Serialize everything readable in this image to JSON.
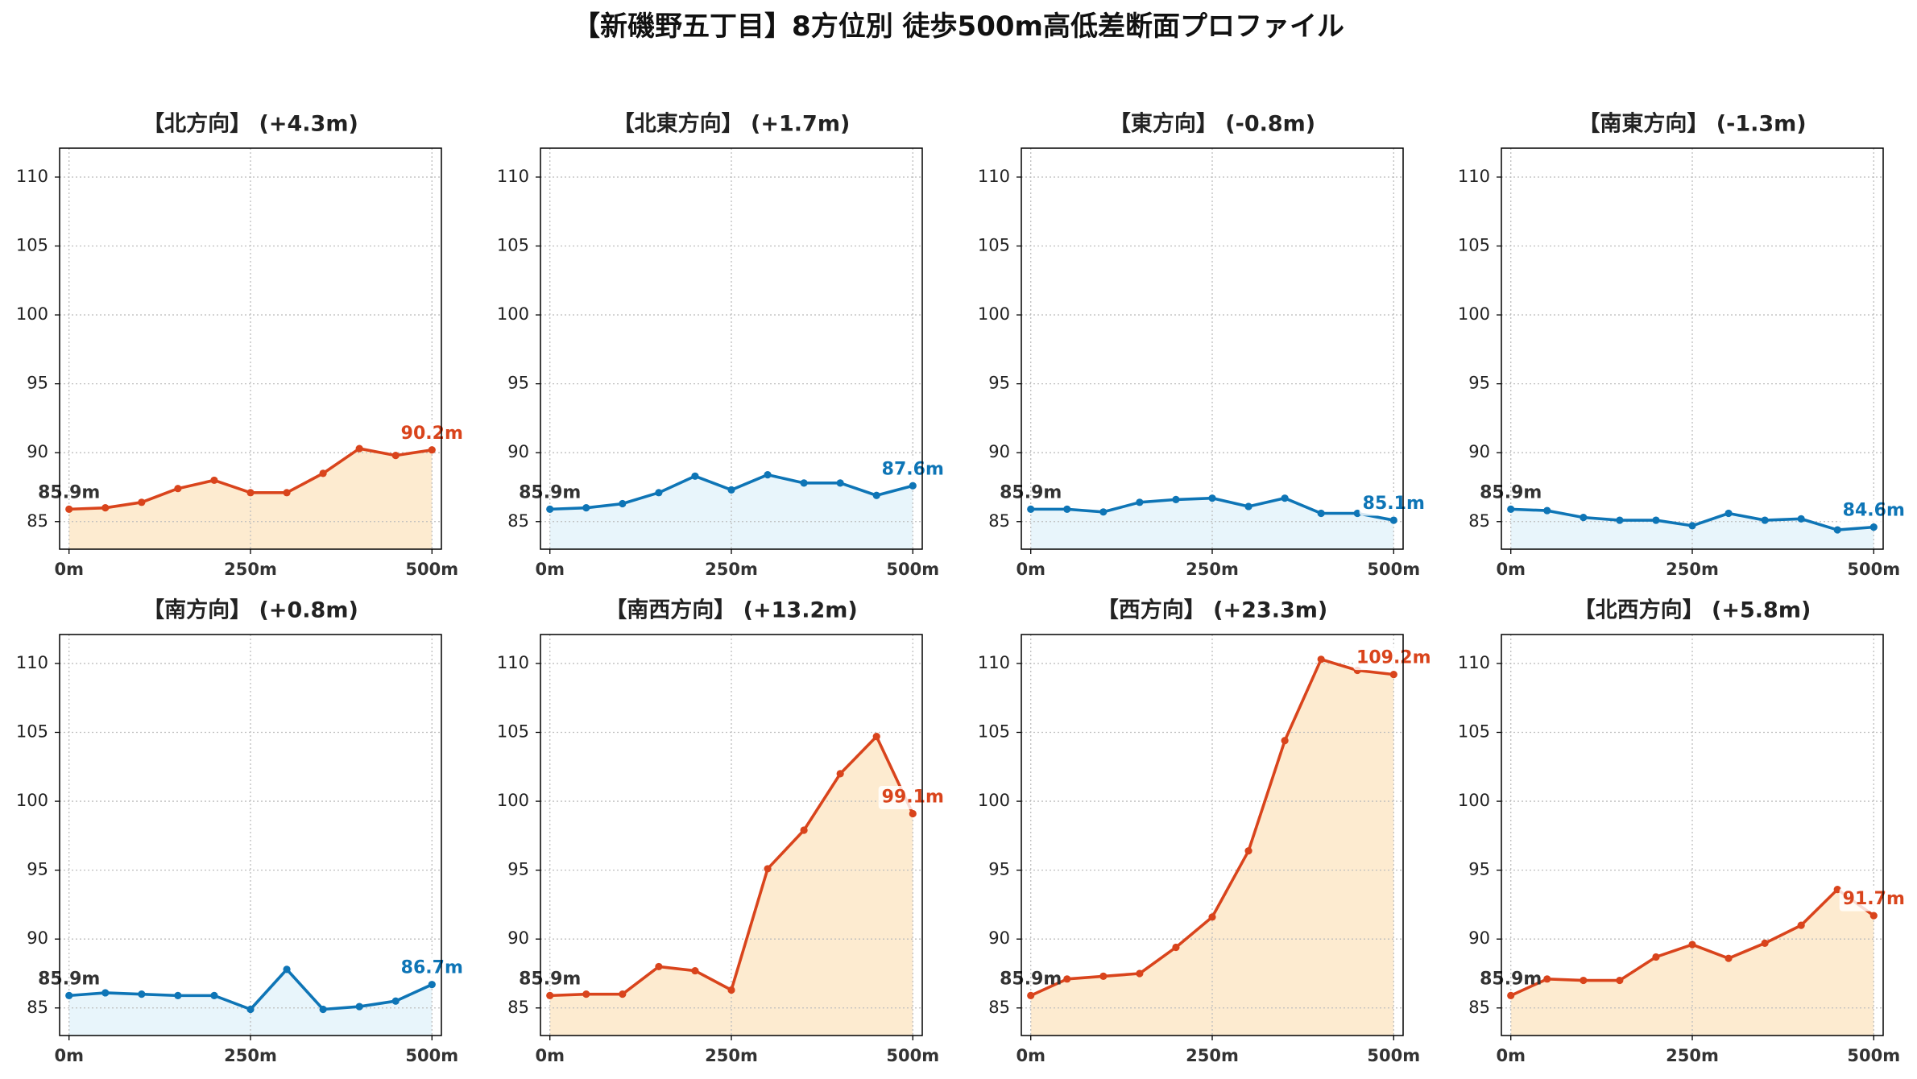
{
  "title": "【新磯野五丁目】8方位別 徒歩500m高低差断面プロファイル",
  "colors": {
    "rise_line": "#d9441c",
    "rise_fill": "#fdebd0",
    "flat_line": "#0e75b6",
    "flat_fill": "#e8f5fb",
    "start_label": "#333333"
  },
  "chart_data": [
    {
      "type": "line",
      "title": "【北方向】 (+4.3m)",
      "x": [
        0,
        50,
        100,
        150,
        200,
        250,
        300,
        350,
        400,
        450,
        500
      ],
      "y": [
        85.9,
        86.0,
        86.4,
        87.4,
        88.0,
        87.1,
        87.1,
        88.5,
        90.3,
        89.8,
        90.2
      ],
      "xticks": [
        0,
        250,
        500
      ],
      "xtick_labels": [
        "0m",
        "250m",
        "500m"
      ],
      "yticks": [
        85,
        90,
        95,
        100,
        105,
        110
      ],
      "ytick_labels": [
        "85",
        "90",
        "95",
        "100",
        "105",
        "110"
      ],
      "xlim": [
        -13,
        513
      ],
      "ylim": [
        83.0,
        112.1
      ],
      "grid": true,
      "start_label": "85.9m",
      "end_label": "90.2m",
      "color": "#d9441c",
      "fill": "#fdebd0"
    },
    {
      "type": "line",
      "title": "【北東方向】 (+1.7m)",
      "x": [
        0,
        50,
        100,
        150,
        200,
        250,
        300,
        350,
        400,
        450,
        500
      ],
      "y": [
        85.9,
        86.0,
        86.3,
        87.1,
        88.3,
        87.3,
        88.4,
        87.8,
        87.8,
        86.9,
        87.6
      ],
      "xticks": [
        0,
        250,
        500
      ],
      "xtick_labels": [
        "0m",
        "250m",
        "500m"
      ],
      "yticks": [
        85,
        90,
        95,
        100,
        105,
        110
      ],
      "ytick_labels": [
        "85",
        "90",
        "95",
        "100",
        "105",
        "110"
      ],
      "xlim": [
        -13,
        513
      ],
      "ylim": [
        83.0,
        112.1
      ],
      "grid": true,
      "start_label": "85.9m",
      "end_label": "87.6m",
      "color": "#0e75b6",
      "fill": "#e8f5fb"
    },
    {
      "type": "line",
      "title": "【東方向】 (-0.8m)",
      "x": [
        0,
        50,
        100,
        150,
        200,
        250,
        300,
        350,
        400,
        450,
        500
      ],
      "y": [
        85.9,
        85.9,
        85.7,
        86.4,
        86.6,
        86.7,
        86.1,
        86.7,
        85.6,
        85.6,
        85.1
      ],
      "xticks": [
        0,
        250,
        500
      ],
      "xtick_labels": [
        "0m",
        "250m",
        "500m"
      ],
      "yticks": [
        85,
        90,
        95,
        100,
        105,
        110
      ],
      "ytick_labels": [
        "85",
        "90",
        "95",
        "100",
        "105",
        "110"
      ],
      "xlim": [
        -13,
        513
      ],
      "ylim": [
        83.0,
        112.1
      ],
      "grid": true,
      "start_label": "85.9m",
      "end_label": "85.1m",
      "color": "#0e75b6",
      "fill": "#e8f5fb"
    },
    {
      "type": "line",
      "title": "【南東方向】 (-1.3m)",
      "x": [
        0,
        50,
        100,
        150,
        200,
        250,
        300,
        350,
        400,
        450,
        500
      ],
      "y": [
        85.9,
        85.8,
        85.3,
        85.1,
        85.1,
        84.7,
        85.6,
        85.1,
        85.2,
        84.4,
        84.6
      ],
      "xticks": [
        0,
        250,
        500
      ],
      "xtick_labels": [
        "0m",
        "250m",
        "500m"
      ],
      "yticks": [
        85,
        90,
        95,
        100,
        105,
        110
      ],
      "ytick_labels": [
        "85",
        "90",
        "95",
        "100",
        "105",
        "110"
      ],
      "xlim": [
        -13,
        513
      ],
      "ylim": [
        83.0,
        112.1
      ],
      "grid": true,
      "start_label": "85.9m",
      "end_label": "84.6m",
      "color": "#0e75b6",
      "fill": "#e8f5fb"
    },
    {
      "type": "line",
      "title": "【南方向】 (+0.8m)",
      "x": [
        0,
        50,
        100,
        150,
        200,
        250,
        300,
        350,
        400,
        450,
        500
      ],
      "y": [
        85.9,
        86.1,
        86.0,
        85.9,
        85.9,
        84.9,
        87.8,
        84.9,
        85.1,
        85.5,
        86.7
      ],
      "xticks": [
        0,
        250,
        500
      ],
      "xtick_labels": [
        "0m",
        "250m",
        "500m"
      ],
      "yticks": [
        85,
        90,
        95,
        100,
        105,
        110
      ],
      "ytick_labels": [
        "85",
        "90",
        "95",
        "100",
        "105",
        "110"
      ],
      "xlim": [
        -13,
        513
      ],
      "ylim": [
        83.0,
        112.1
      ],
      "grid": true,
      "start_label": "85.9m",
      "end_label": "86.7m",
      "color": "#0e75b6",
      "fill": "#e8f5fb"
    },
    {
      "type": "line",
      "title": "【南西方向】 (+13.2m)",
      "x": [
        0,
        50,
        100,
        150,
        200,
        250,
        300,
        350,
        400,
        450,
        500
      ],
      "y": [
        85.9,
        86.0,
        86.0,
        88.0,
        87.7,
        86.3,
        95.1,
        97.9,
        102.0,
        104.7,
        99.1
      ],
      "xticks": [
        0,
        250,
        500
      ],
      "xtick_labels": [
        "0m",
        "250m",
        "500m"
      ],
      "yticks": [
        85,
        90,
        95,
        100,
        105,
        110
      ],
      "ytick_labels": [
        "85",
        "90",
        "95",
        "100",
        "105",
        "110"
      ],
      "xlim": [
        -13,
        513
      ],
      "ylim": [
        83.0,
        112.1
      ],
      "grid": true,
      "start_label": "85.9m",
      "end_label": "99.1m",
      "color": "#d9441c",
      "fill": "#fdebd0"
    },
    {
      "type": "line",
      "title": "【西方向】 (+23.3m)",
      "x": [
        0,
        50,
        100,
        150,
        200,
        250,
        300,
        350,
        400,
        450,
        500
      ],
      "y": [
        85.9,
        87.1,
        87.3,
        87.5,
        89.4,
        91.6,
        96.4,
        104.4,
        110.3,
        109.5,
        109.2
      ],
      "xticks": [
        0,
        250,
        500
      ],
      "xtick_labels": [
        "0m",
        "250m",
        "500m"
      ],
      "yticks": [
        85,
        90,
        95,
        100,
        105,
        110
      ],
      "ytick_labels": [
        "85",
        "90",
        "95",
        "100",
        "105",
        "110"
      ],
      "xlim": [
        -13,
        513
      ],
      "ylim": [
        83.0,
        112.1
      ],
      "grid": true,
      "start_label": "85.9m",
      "end_label": "109.2m",
      "color": "#d9441c",
      "fill": "#fdebd0"
    },
    {
      "type": "line",
      "title": "【北西方向】 (+5.8m)",
      "x": [
        0,
        50,
        100,
        150,
        200,
        250,
        300,
        350,
        400,
        450,
        500
      ],
      "y": [
        85.9,
        87.1,
        87.0,
        87.0,
        88.7,
        89.6,
        88.6,
        89.7,
        91.0,
        93.6,
        91.7
      ],
      "xticks": [
        0,
        250,
        500
      ],
      "xtick_labels": [
        "0m",
        "250m",
        "500m"
      ],
      "yticks": [
        85,
        90,
        95,
        100,
        105,
        110
      ],
      "ytick_labels": [
        "85",
        "90",
        "95",
        "100",
        "105",
        "110"
      ],
      "xlim": [
        -13,
        513
      ],
      "ylim": [
        83.0,
        112.1
      ],
      "grid": true,
      "start_label": "85.9m",
      "end_label": "91.7m",
      "color": "#d9441c",
      "fill": "#fdebd0"
    }
  ]
}
